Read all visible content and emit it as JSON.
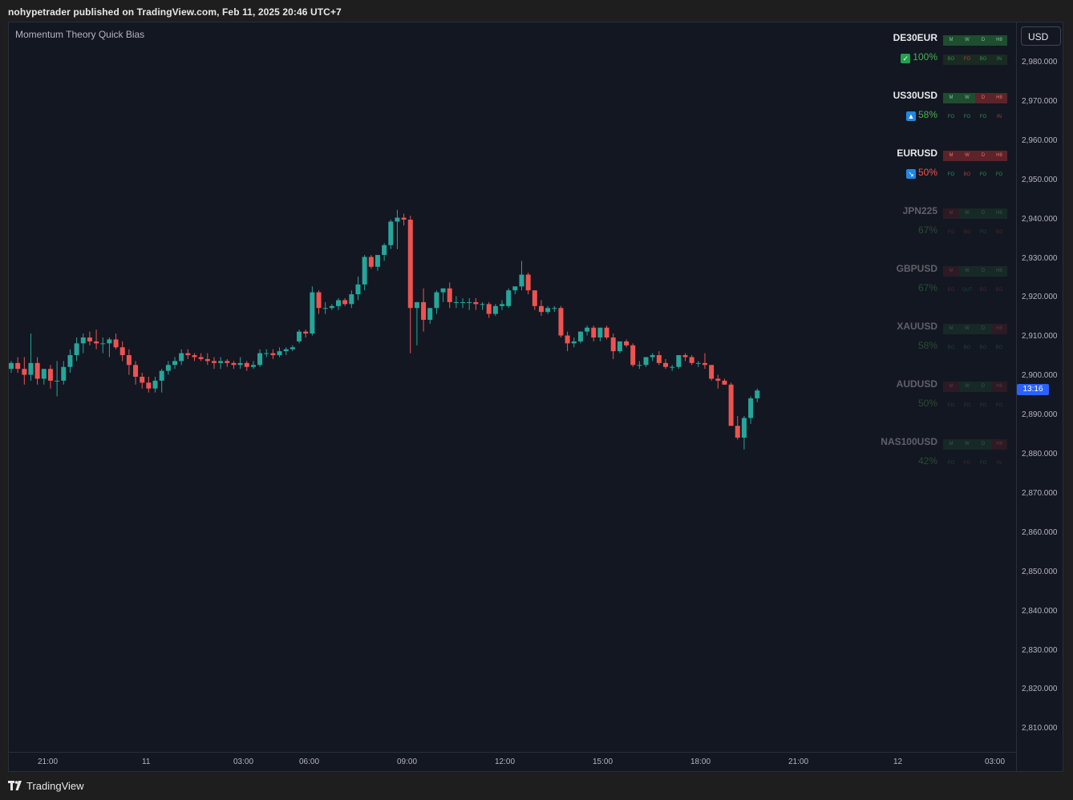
{
  "header": {
    "published_text": "nohypetrader published on TradingView.com, Feb 11, 2025 20:46 UTC+7"
  },
  "indicator": {
    "name": "Momentum Theory Quick Bias"
  },
  "currency_button": {
    "label": "USD"
  },
  "price_tag": {
    "label": "13:16",
    "value": 2896.5
  },
  "footer": {
    "brand": "TradingView",
    "logo_icon": "tradingview-logo-icon"
  },
  "colors": {
    "up": "#26a69a",
    "down": "#ef5350",
    "background": "#131722",
    "accent": "#2962ff",
    "positive_text": "#4caf50"
  },
  "chart_data": {
    "type": "candlestick",
    "y_ticks": [
      "2,980.000",
      "2,970.000",
      "2,960.000",
      "2,950.000",
      "2,940.000",
      "2,930.000",
      "2,920.000",
      "2,910.000",
      "2,900.000",
      "2,890.000",
      "2,880.000",
      "2,870.000",
      "2,860.000",
      "2,850.000",
      "2,840.000",
      "2,830.000",
      "2,820.000",
      "2,810.000"
    ],
    "ylim": [
      2803,
      2990
    ],
    "x_ticks": [
      "21:00",
      "11",
      "03:00",
      "06:00",
      "09:00",
      "12:00",
      "15:00",
      "18:00",
      "21:00",
      "12",
      "03:00"
    ],
    "candles": [
      [
        2902.0,
        2904.0,
        2901.0,
        2903.5
      ],
      [
        2903.5,
        2905.0,
        2901.0,
        2902.0
      ],
      [
        2902.0,
        2905.0,
        2898.0,
        2900.5
      ],
      [
        2900.5,
        2911.0,
        2899.0,
        2903.5
      ],
      [
        2903.5,
        2905.0,
        2898.0,
        2899.5
      ],
      [
        2899.5,
        2902.0,
        2898.0,
        2902.0
      ],
      [
        2902.0,
        2903.0,
        2897.0,
        2899.0
      ],
      [
        2899.0,
        2904.0,
        2895.0,
        2899.0
      ],
      [
        2899.0,
        2904.0,
        2898.0,
        2902.5
      ],
      [
        2902.5,
        2907.0,
        2901.0,
        2905.5
      ],
      [
        2905.5,
        2910.0,
        2904.0,
        2908.5
      ],
      [
        2908.5,
        2911.0,
        2906.0,
        2910.0
      ],
      [
        2910.0,
        2911.5,
        2908.0,
        2909.0
      ],
      [
        2909.0,
        2912.0,
        2907.0,
        2908.5
      ],
      [
        2908.5,
        2910.0,
        2906.0,
        2908.5
      ],
      [
        2908.5,
        2910.0,
        2905.0,
        2909.5
      ],
      [
        2909.5,
        2911.0,
        2907.0,
        2907.5
      ],
      [
        2907.5,
        2909.0,
        2904.0,
        2905.5
      ],
      [
        2905.5,
        2907.0,
        2900.5,
        2903.0
      ],
      [
        2903.0,
        2904.0,
        2898.0,
        2900.0
      ],
      [
        2900.0,
        2901.0,
        2897.0,
        2898.5
      ],
      [
        2898.5,
        2900.0,
        2896.0,
        2897.0
      ],
      [
        2897.0,
        2900.0,
        2896.0,
        2899.0
      ],
      [
        2899.0,
        2902.0,
        2896.0,
        2901.5
      ],
      [
        2901.5,
        2904.0,
        2900.5,
        2903.0
      ],
      [
        2903.0,
        2905.0,
        2902.0,
        2904.0
      ],
      [
        2904.0,
        2907.0,
        2903.0,
        2906.0
      ],
      [
        2906.0,
        2907.0,
        2904.5,
        2905.5
      ],
      [
        2905.5,
        2906.0,
        2904.0,
        2905.0
      ],
      [
        2905.0,
        2906.0,
        2904.0,
        2904.5
      ],
      [
        2904.5,
        2906.0,
        2903.0,
        2904.0
      ],
      [
        2904.0,
        2905.0,
        2902.0,
        2903.5
      ],
      [
        2903.5,
        2905.0,
        2902.0,
        2904.0
      ],
      [
        2904.0,
        2904.5,
        2902.5,
        2903.5
      ],
      [
        2903.5,
        2904.0,
        2902.0,
        2903.0
      ],
      [
        2903.0,
        2905.0,
        2902.0,
        2903.5
      ],
      [
        2903.5,
        2904.0,
        2901.5,
        2902.5
      ],
      [
        2902.5,
        2904.0,
        2902.0,
        2903.0
      ],
      [
        2903.0,
        2907.0,
        2902.5,
        2906.0
      ],
      [
        2906.0,
        2907.0,
        2905.0,
        2906.0
      ],
      [
        2906.0,
        2907.0,
        2904.5,
        2905.5
      ],
      [
        2905.5,
        2907.5,
        2905.0,
        2906.5
      ],
      [
        2906.5,
        2907.5,
        2905.5,
        2907.0
      ],
      [
        2907.0,
        2908.0,
        2906.5,
        2907.5
      ],
      [
        2909.0,
        2912.0,
        2908.5,
        2911.5
      ],
      [
        2911.5,
        2912.0,
        2910.0,
        2911.0
      ],
      [
        2911.0,
        2923.0,
        2910.5,
        2921.5
      ],
      [
        2921.5,
        2922.0,
        2916.0,
        2917.5
      ],
      [
        2917.5,
        2919.0,
        2916.0,
        2917.5
      ],
      [
        2917.5,
        2918.5,
        2917.0,
        2918.0
      ],
      [
        2918.0,
        2920.0,
        2917.0,
        2919.5
      ],
      [
        2919.5,
        2920.0,
        2918.0,
        2918.5
      ],
      [
        2918.5,
        2922.0,
        2917.5,
        2921.0
      ],
      [
        2921.0,
        2925.5,
        2919.5,
        2923.5
      ],
      [
        2923.5,
        2931.0,
        2922.0,
        2930.5
      ],
      [
        2930.5,
        2931.0,
        2927.5,
        2928.0
      ],
      [
        2928.0,
        2931.0,
        2927.0,
        2931.0
      ],
      [
        2931.0,
        2934.0,
        2929.5,
        2933.5
      ],
      [
        2933.5,
        2940.0,
        2932.5,
        2939.5
      ],
      [
        2939.5,
        2942.5,
        2932.5,
        2940.5
      ],
      [
        2940.5,
        2941.5,
        2938.5,
        2940.0
      ],
      [
        2940.0,
        2941.0,
        2906.0,
        2917.5
      ],
      [
        2917.5,
        2919.0,
        2908.0,
        2919.0
      ],
      [
        2919.0,
        2922.5,
        2911.5,
        2914.5
      ],
      [
        2914.5,
        2917.5,
        2913.5,
        2917.5
      ],
      [
        2917.5,
        2922.0,
        2916.0,
        2921.5
      ],
      [
        2921.5,
        2922.5,
        2919.0,
        2922.5
      ],
      [
        2922.5,
        2924.0,
        2917.5,
        2919.0
      ],
      [
        2919.0,
        2920.5,
        2917.5,
        2919.0
      ],
      [
        2919.0,
        2920.0,
        2917.5,
        2919.0
      ],
      [
        2919.0,
        2920.0,
        2917.0,
        2919.0
      ],
      [
        2919.0,
        2920.0,
        2917.0,
        2918.5
      ],
      [
        2918.5,
        2919.0,
        2917.0,
        2918.5
      ],
      [
        2918.5,
        2919.0,
        2915.0,
        2916.0
      ],
      [
        2916.0,
        2918.5,
        2915.5,
        2918.0
      ],
      [
        2918.0,
        2919.5,
        2917.0,
        2918.5
      ],
      [
        2918.0,
        2922.5,
        2917.5,
        2922.0
      ],
      [
        2922.0,
        2923.0,
        2921.0,
        2923.0
      ],
      [
        2923.0,
        2929.5,
        2922.0,
        2926.0
      ],
      [
        2926.0,
        2926.5,
        2921.0,
        2922.0
      ],
      [
        2922.0,
        2922.0,
        2917.0,
        2918.0
      ],
      [
        2918.0,
        2919.5,
        2915.5,
        2916.5
      ],
      [
        2916.5,
        2918.0,
        2916.0,
        2917.5
      ],
      [
        2917.5,
        2918.0,
        2916.5,
        2917.5
      ],
      [
        2917.5,
        2918.0,
        2910.0,
        2910.5
      ],
      [
        2910.5,
        2911.5,
        2906.5,
        2908.5
      ],
      [
        2908.5,
        2910.0,
        2907.5,
        2909.0
      ],
      [
        2909.0,
        2911.5,
        2908.5,
        2911.5
      ],
      [
        2911.5,
        2913.0,
        2910.5,
        2912.5
      ],
      [
        2912.5,
        2913.0,
        2909.0,
        2910.0
      ],
      [
        2910.0,
        2912.5,
        2909.0,
        2912.5
      ],
      [
        2912.5,
        2913.0,
        2909.5,
        2910.0
      ],
      [
        2910.0,
        2911.0,
        2904.5,
        2906.5
      ],
      [
        2906.5,
        2909.0,
        2906.0,
        2909.0
      ],
      [
        2909.0,
        2909.5,
        2907.5,
        2908.0
      ],
      [
        2908.0,
        2908.5,
        2902.5,
        2903.0
      ],
      [
        2903.0,
        2904.0,
        2902.0,
        2903.0
      ],
      [
        2903.0,
        2905.0,
        2902.5,
        2905.0
      ],
      [
        2905.0,
        2906.0,
        2904.0,
        2905.5
      ],
      [
        2905.5,
        2906.5,
        2903.0,
        2903.5
      ],
      [
        2903.5,
        2904.5,
        2902.0,
        2902.5
      ],
      [
        2902.5,
        2903.0,
        2901.5,
        2902.5
      ],
      [
        2902.5,
        2905.5,
        2902.0,
        2905.5
      ],
      [
        2905.5,
        2906.0,
        2904.0,
        2905.0
      ],
      [
        2905.0,
        2905.5,
        2903.0,
        2903.5
      ],
      [
        2903.5,
        2904.0,
        2902.5,
        2903.5
      ],
      [
        2903.5,
        2906.0,
        2902.0,
        2903.0
      ],
      [
        2903.0,
        2903.0,
        2899.0,
        2899.5
      ],
      [
        2899.5,
        2900.5,
        2897.0,
        2899.0
      ],
      [
        2899.0,
        2899.5,
        2898.0,
        2898.0
      ],
      [
        2898.0,
        2898.5,
        2887.5,
        2887.5
      ],
      [
        2887.5,
        2890.0,
        2884.0,
        2884.5
      ],
      [
        2884.5,
        2890.0,
        2881.5,
        2889.5
      ],
      [
        2889.5,
        2895.0,
        2888.0,
        2894.5
      ],
      [
        2894.5,
        2897.0,
        2893.5,
        2896.5
      ]
    ]
  },
  "bias_table": {
    "headers": [
      "M",
      "W",
      "D",
      "H8"
    ],
    "rows": [
      {
        "symbol": "DE30EUR",
        "percent": "100%",
        "badge": "✓",
        "badge_icon": "checkmark-icon",
        "dim": false,
        "pct_color": "#4caf50",
        "badge_color": "#1fa34a",
        "header_colors": [
          "#1f4d2f",
          "#1f4d2f",
          "#1f4d2f",
          "#1f4d2f"
        ],
        "subs": [
          "BO",
          "FO",
          "BO",
          "IN"
        ],
        "sub_colors": [
          "#2f8f4e",
          "#a8403c",
          "#2f8f4e",
          "#2f8f4e"
        ]
      },
      {
        "symbol": "US30USD",
        "percent": "58%",
        "badge": "▲",
        "badge_icon": "triangle-up-icon",
        "dim": false,
        "pct_color": "#4caf50",
        "badge_color": "#1e88e5",
        "header_colors": [
          "#1f4d2f",
          "#1f4d2f",
          "#5c2428",
          "#5c2428"
        ],
        "subs": [
          "FO",
          "FO",
          "FO",
          "IN"
        ],
        "sub_colors": [
          "#2f8f4e",
          "#2f8f4e",
          "#2f8f4e",
          "#a8403c"
        ]
      },
      {
        "symbol": "EURUSD",
        "percent": "50%",
        "badge": "↘",
        "badge_icon": "arrow-down-right-icon",
        "dim": false,
        "pct_color": "#ef5350",
        "badge_color": "#1e88e5",
        "header_colors": [
          "#5c2428",
          "#5c2428",
          "#5c2428",
          "#5c2428"
        ],
        "subs": [
          "FO",
          "BO",
          "FO",
          "FO"
        ],
        "sub_colors": [
          "#2f8f4e",
          "#a8403c",
          "#2f8f4e",
          "#2f8f4e"
        ]
      },
      {
        "symbol": "JPN225",
        "percent": "67%",
        "badge": "",
        "badge_icon": "",
        "dim": true,
        "pct_color": "#4caf50",
        "badge_color": "",
        "header_colors": [
          "#5c2428",
          "#1f4d2f",
          "#1f4d2f",
          "#1f4d2f"
        ],
        "subs": [
          "FO",
          "BO",
          "FO",
          "BO"
        ],
        "sub_colors": [
          "#a8403c",
          "#a8403c",
          "#2f8f4e",
          "#a8403c"
        ]
      },
      {
        "symbol": "GBPUSD",
        "percent": "67%",
        "badge": "",
        "badge_icon": "",
        "dim": true,
        "pct_color": "#4caf50",
        "badge_color": "",
        "header_colors": [
          "#5c2428",
          "#1f4d2f",
          "#1f4d2f",
          "#1f4d2f"
        ],
        "subs": [
          "BO",
          "OUT",
          "BO",
          "BO"
        ],
        "sub_colors": [
          "#a8403c",
          "#2f8f4e",
          "#a8403c",
          "#a8403c"
        ]
      },
      {
        "symbol": "XAUUSD",
        "percent": "58%",
        "badge": "",
        "badge_icon": "",
        "dim": true,
        "pct_color": "#4caf50",
        "badge_color": "",
        "header_colors": [
          "#1f4d2f",
          "#1f4d2f",
          "#1f4d2f",
          "#5c2428"
        ],
        "subs": [
          "BO",
          "BO",
          "BO",
          "BO"
        ],
        "sub_colors": [
          "#2f8f4e",
          "#2f8f4e",
          "#2f8f4e",
          "#2f8f4e"
        ]
      },
      {
        "symbol": "AUDUSD",
        "percent": "50%",
        "badge": "",
        "badge_icon": "",
        "dim": true,
        "pct_color": "#4caf50",
        "badge_color": "",
        "header_colors": [
          "#5c2428",
          "#1f4d2f",
          "#1f4d2f",
          "#5c2428"
        ],
        "subs": [
          "FO",
          "FO",
          "FO",
          "FO"
        ],
        "sub_colors": [
          "#2f8f4e",
          "#2f8f4e",
          "#2f8f4e",
          "#2f8f4e"
        ]
      },
      {
        "symbol": "NAS100USD",
        "percent": "42%",
        "badge": "",
        "badge_icon": "",
        "dim": true,
        "pct_color": "#4caf50",
        "badge_color": "",
        "header_colors": [
          "#1f4d2f",
          "#1f4d2f",
          "#1f4d2f",
          "#5c2428"
        ],
        "subs": [
          "FO",
          "FO",
          "FO",
          "IN"
        ],
        "sub_colors": [
          "#2f8f4e",
          "#a8403c",
          "#2f8f4e",
          "#a8403c"
        ]
      }
    ]
  }
}
